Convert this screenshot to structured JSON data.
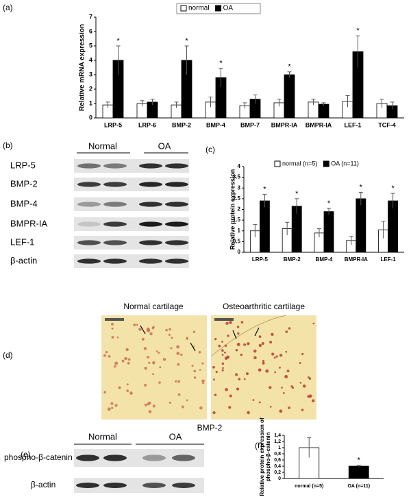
{
  "panel_labels": [
    "(a)",
    "(b)",
    "(c)",
    "(d)",
    "(e)",
    "(f)"
  ],
  "chart_data": [
    {
      "type": "bar",
      "ylabel": [
        "Relative mRNA expression"
      ],
      "categories": [
        "LRP-5",
        "LRP-6",
        "BMP-2",
        "BMP-4",
        "BMP-7",
        "BMPR-IA",
        "BMPR-IA",
        "LEF-1",
        "TCF-4"
      ],
      "series": [
        {
          "name": "normal",
          "color": "#ffffff",
          "values": [
            0.9,
            1.0,
            0.9,
            1.1,
            0.85,
            1.05,
            1.1,
            1.15,
            1.0
          ],
          "errors": [
            0.2,
            0.2,
            0.2,
            0.35,
            0.2,
            0.25,
            0.2,
            0.4,
            0.3
          ]
        },
        {
          "name": "OA",
          "color": "#000000",
          "values": [
            4.0,
            1.1,
            4.0,
            2.8,
            1.3,
            3.0,
            0.95,
            4.6,
            0.85
          ],
          "errors": [
            1.0,
            0.2,
            1.0,
            0.65,
            0.3,
            0.2,
            0.1,
            1.1,
            0.25
          ]
        }
      ],
      "markers": [
        "*",
        null,
        "*",
        "*",
        null,
        "*",
        null,
        "*",
        null
      ],
      "ylim": [
        0,
        7
      ],
      "yticks": [
        0,
        1,
        2,
        3,
        4,
        5,
        6,
        7
      ],
      "legend": "top"
    },
    {
      "type": "bar",
      "ylabel": [
        "Relative protein expression"
      ],
      "categories": [
        "LRP-5",
        "BMP-2",
        "BMP-4",
        "BMPR-IA",
        "LEF-1"
      ],
      "series": [
        {
          "name": "normal (n=5)",
          "color": "#ffffff",
          "values": [
            1.0,
            1.1,
            0.9,
            0.55,
            1.05
          ],
          "errors": [
            0.3,
            0.3,
            0.2,
            0.2,
            0.4
          ]
        },
        {
          "name": "OA (n=11)",
          "color": "#000000",
          "values": [
            2.4,
            2.15,
            1.9,
            2.5,
            2.4
          ],
          "errors": [
            0.3,
            0.35,
            0.15,
            0.3,
            0.35
          ]
        }
      ],
      "markers": [
        "*",
        "*",
        "*",
        "*",
        "*"
      ],
      "ylim": [
        0,
        4
      ],
      "yticks": [
        0,
        0.5,
        1,
        1.5,
        2,
        2.5,
        3,
        3.5,
        4
      ],
      "legend": "top"
    },
    {
      "type": "bar",
      "ylabel": [
        "Relative protein expression of",
        "phospho-β-catenin"
      ],
      "categories": [
        "normal (n=5)",
        "OA (n=11)"
      ],
      "series": [
        {
          "colors": [
            "#ffffff",
            "#000000"
          ],
          "values": [
            1.0,
            0.4
          ],
          "errors": [
            0.32,
            0.03
          ]
        }
      ],
      "markers": [
        null,
        "*"
      ],
      "ylim": [
        0,
        1.4
      ],
      "yticks": [
        0,
        {
          "value": 0.2,
          "label": "0,2"
        },
        {
          "value": 0.4,
          "label": "0,4"
        },
        {
          "value": 0.6,
          "label": "0,6"
        },
        {
          "value": 0.8,
          "label": "0,8"
        },
        1,
        {
          "value": 1.2,
          "label": "1,2"
        },
        {
          "value": 1.4,
          "label": "1,4"
        }
      ]
    }
  ],
  "blot_b": {
    "groups": [
      "Normal",
      "OA"
    ],
    "rows": [
      "LRP-5",
      "BMP-2",
      "BMP-4",
      "BMPR-IA",
      "LEF-1",
      "β-actin"
    ]
  },
  "histology": {
    "titles": [
      "Normal cartilage",
      "Osteoarthritic cartilage"
    ],
    "caption": "BMP-2"
  },
  "blot_e": {
    "groups": [
      "Normal",
      "OA"
    ],
    "rows": [
      "phospho-β-catenin",
      "β-actin"
    ]
  }
}
